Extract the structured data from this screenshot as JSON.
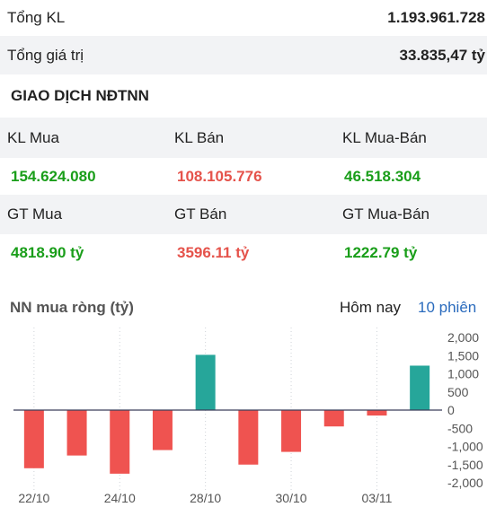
{
  "summary": {
    "total_volume_label": "Tổng KL",
    "total_volume_value": "1.193.961.728",
    "total_value_label": "Tổng giá trị",
    "total_value_value": "33.835,47 tỷ"
  },
  "foreign": {
    "section_title": "GIAO DỊCH NĐTNN",
    "kl_buy_label": "KL Mua",
    "kl_sell_label": "KL Bán",
    "kl_net_label": "KL Mua-Bán",
    "kl_buy_value": "154.624.080",
    "kl_sell_value": "108.105.776",
    "kl_net_value": "46.518.304",
    "gt_buy_label": "GT Mua",
    "gt_sell_label": "GT Bán",
    "gt_net_label": "GT Mua-Bán",
    "gt_buy_value": "4818.90 tỷ",
    "gt_sell_value": "3596.11 tỷ",
    "gt_net_value": "1222.79 tỷ"
  },
  "chart_header": {
    "title": "NN mua ròng (tỷ)",
    "tab_today": "Hôm nay",
    "tab_10": "10 phiên"
  },
  "colors": {
    "positive": "#26a69a",
    "negative": "#ef5350",
    "green_text": "#1a9e1a",
    "red_text": "#e5534b",
    "active_tab": "#2a6bbd"
  },
  "chart_data": {
    "type": "bar",
    "title": "NN mua ròng (tỷ)",
    "values": [
      -1600,
      -1250,
      -1750,
      -1100,
      1520,
      -1500,
      -1150,
      -450,
      -150,
      1222.79
    ],
    "x_tick_labels": [
      "22/10",
      "24/10",
      "28/10",
      "30/10",
      "03/11"
    ],
    "x_tick_indices": [
      0,
      2,
      4,
      6,
      8
    ],
    "ylim": [
      -2000,
      2000
    ],
    "y_ticks": [
      2000,
      1500,
      1000,
      500,
      0,
      -500,
      -1000,
      -1500,
      -2000
    ],
    "y_tick_labels": [
      "2,000",
      "1,500",
      "1,000",
      "500",
      "0",
      "-500",
      "-1,000",
      "-1,500",
      "-2,000"
    ],
    "grid": "vertical dotted lines at x ticks",
    "axis_position": "right"
  }
}
